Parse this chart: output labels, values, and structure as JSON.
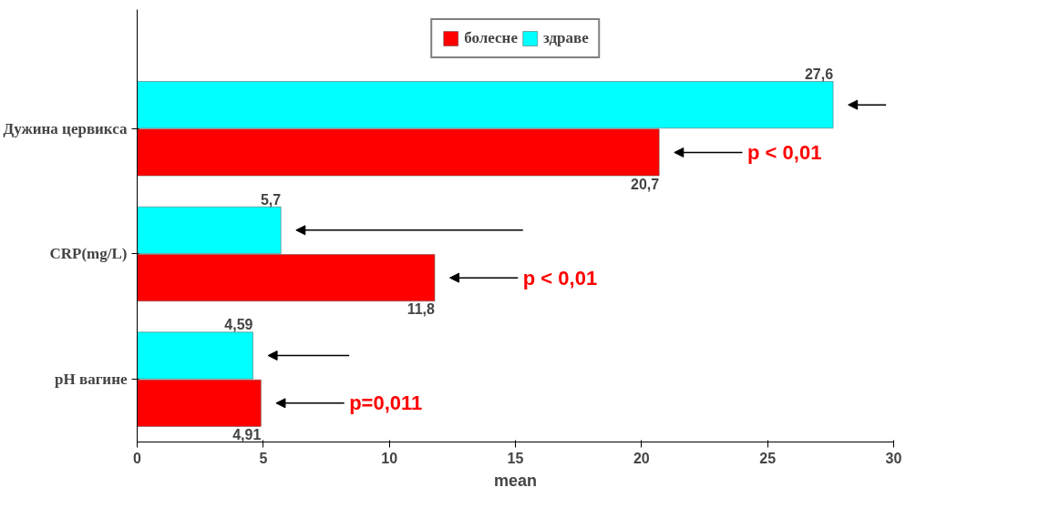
{
  "chart_data": {
    "type": "bar",
    "orientation": "horizontal",
    "xlabel": "mean",
    "categories": [
      "Дужина цервикса",
      "CRP(mg/L)",
      "pH вагине"
    ],
    "series": [
      {
        "name": "болесне",
        "color": "#ff0000",
        "values": [
          20.7,
          11.8,
          4.91
        ],
        "value_labels": [
          "20,7",
          "11,8",
          "4,91"
        ]
      },
      {
        "name": "здраве",
        "color": "#00ffff",
        "values": [
          27.6,
          5.7,
          4.59
        ],
        "value_labels": [
          "27,6",
          "5,7",
          "4,59"
        ]
      }
    ],
    "xlim": [
      0,
      30
    ],
    "xticks": [
      0,
      5,
      10,
      15,
      20,
      25,
      30
    ],
    "grid": false,
    "legend": "top",
    "annotations": [
      "p < 0,01",
      "p < 0,01",
      "p=0,011"
    ]
  }
}
